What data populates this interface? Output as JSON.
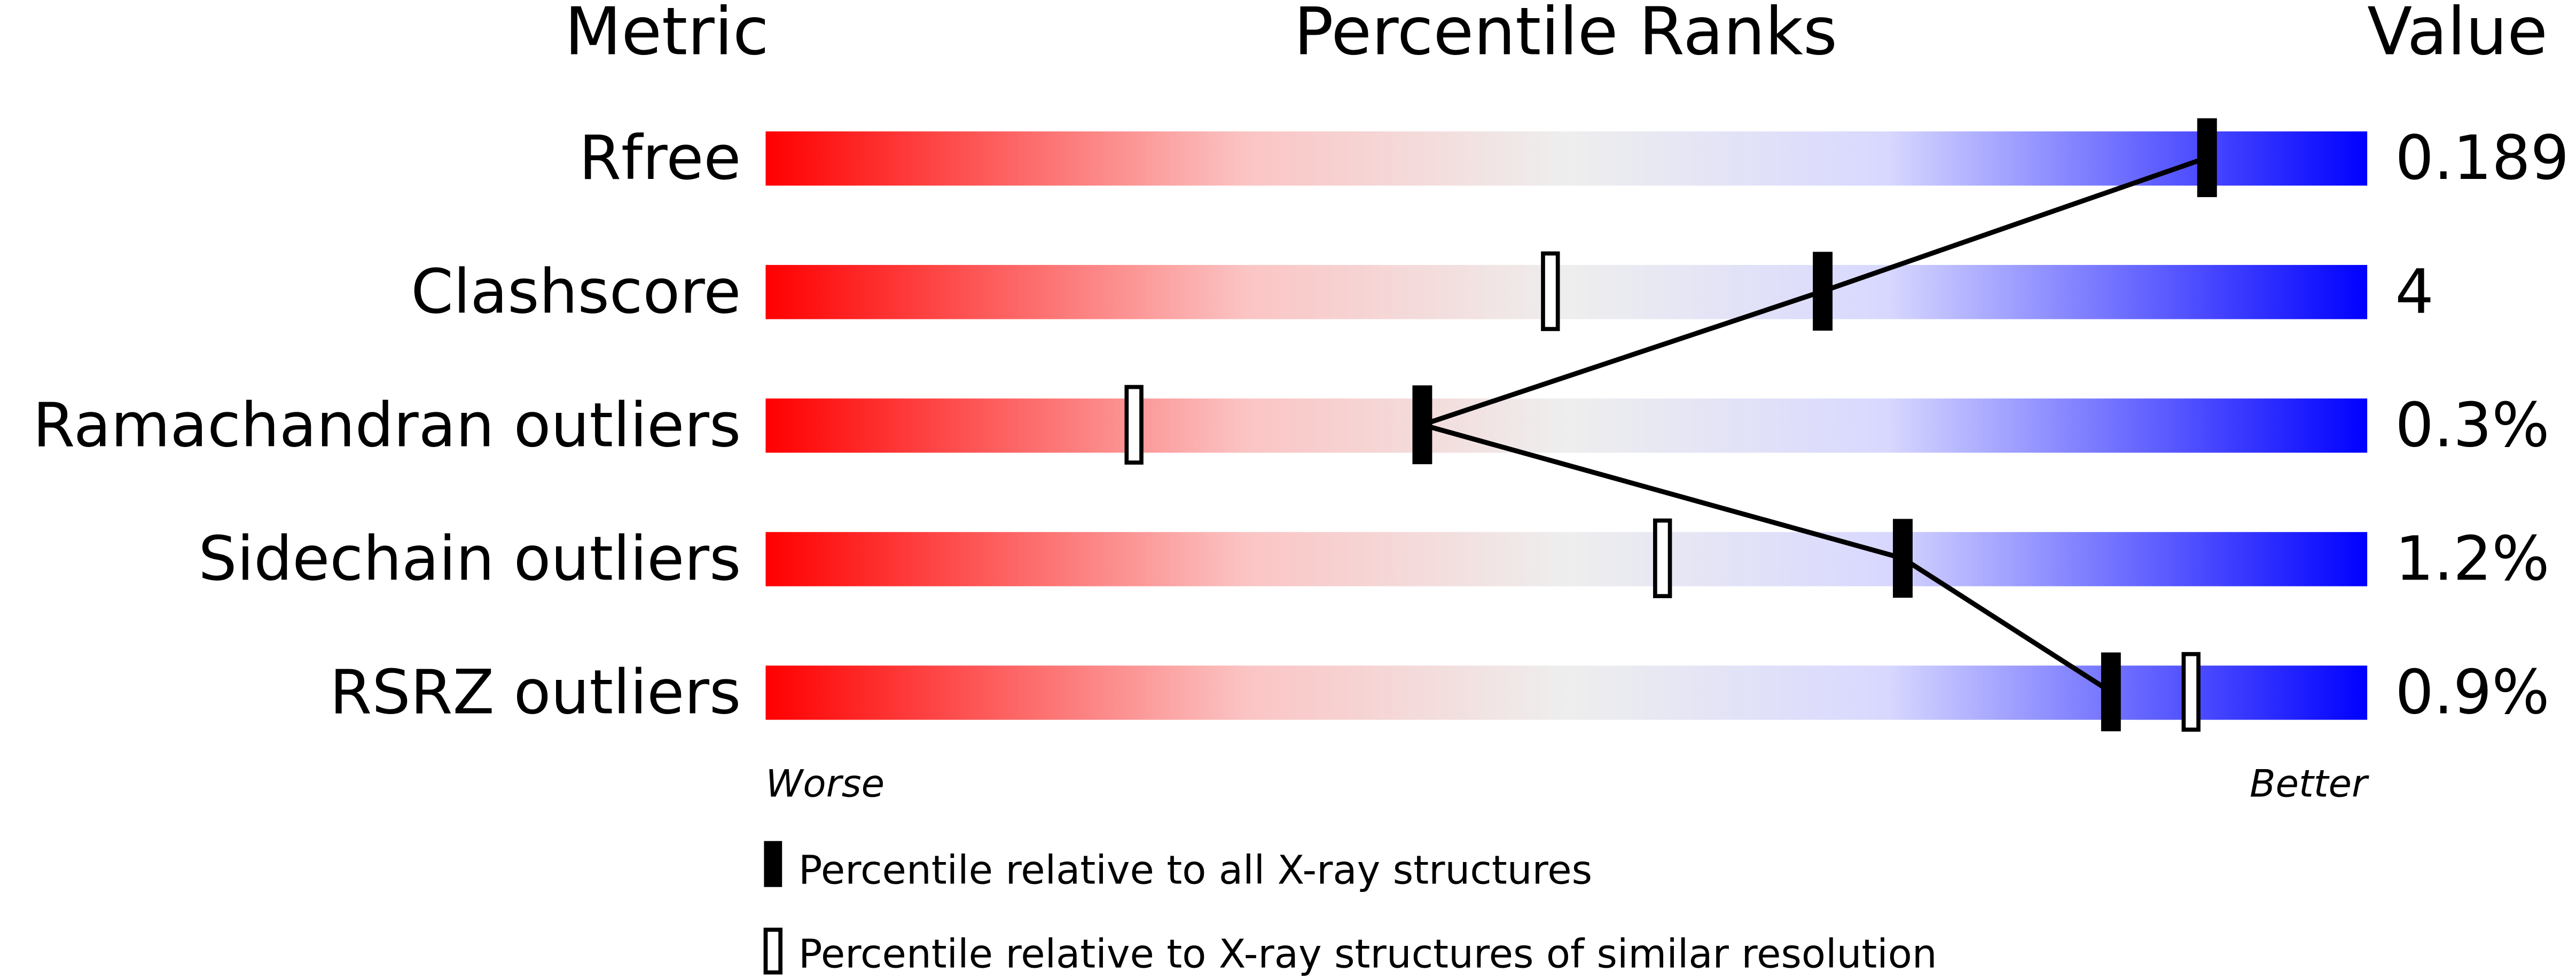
{
  "chart_data": {
    "type": "percentile-bar",
    "headers": {
      "metric": "Metric",
      "ranks": "Percentile Ranks",
      "value": "Value"
    },
    "xlim": [
      0,
      100
    ],
    "axis_labels": {
      "left": "Worse",
      "right": "Better"
    },
    "rows": [
      {
        "metric": "Rfree",
        "value": "0.189",
        "percentile_all": 90,
        "percentile_similar": null
      },
      {
        "metric": "Clashscore",
        "value": "4",
        "percentile_all": 66,
        "percentile_similar": 49
      },
      {
        "metric": "Ramachandran outliers",
        "value": "0.3%",
        "percentile_all": 41,
        "percentile_similar": 23
      },
      {
        "metric": "Sidechain outliers",
        "value": "1.2%",
        "percentile_all": 71,
        "percentile_similar": 56
      },
      {
        "metric": "RSRZ outliers",
        "value": "0.9%",
        "percentile_all": 84,
        "percentile_similar": 89
      }
    ],
    "legend": [
      {
        "marker": "filled",
        "label": "Percentile relative to all X-ray structures"
      },
      {
        "marker": "hollow",
        "label": "Percentile relative to X-ray structures of similar resolution"
      }
    ],
    "colors": {
      "worse": "#ff0000",
      "middle": "#eeeeee",
      "better": "#0000ff",
      "marker": "#000000"
    }
  }
}
